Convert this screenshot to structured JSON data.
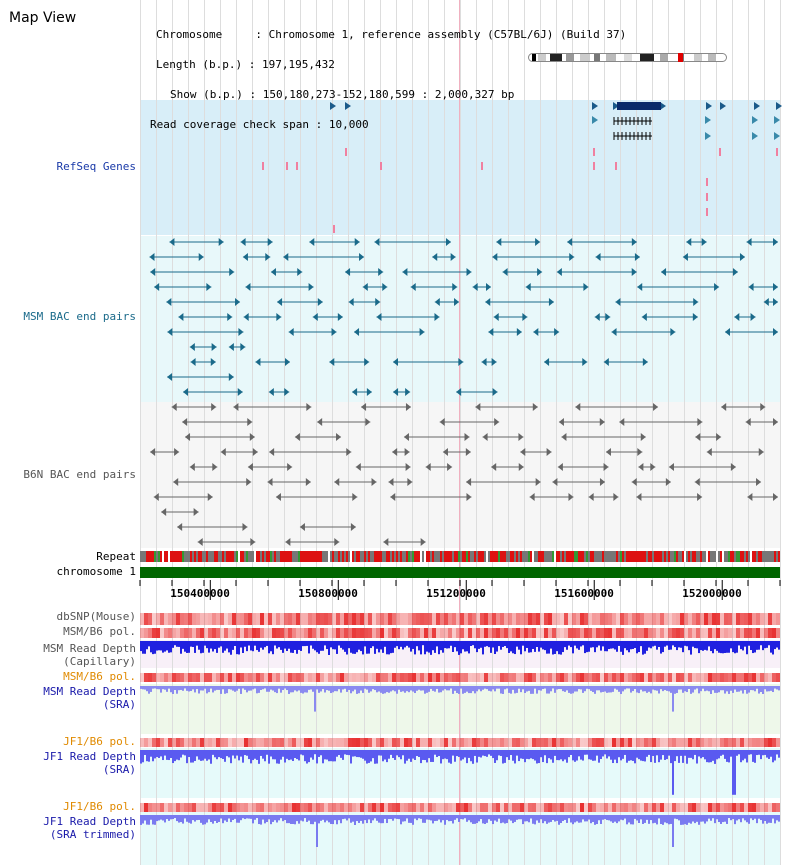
{
  "page_title": "Map View",
  "info": {
    "chromosome_label": "Chromosome",
    "chromosome_value": "Chromosome 1, reference assembly (C57BL/6J) (Build 37)",
    "length_label": "Length (b.p.)",
    "length_value": "197,195,432",
    "show_label": "Show (b.p.)",
    "show_value": "150,180,273-152,180,599 : 2,000,327 bp",
    "span_label": "Read coverage check span",
    "span_value": "10,000"
  },
  "tracks": {
    "refseq": "RefSeq Genes",
    "msm_bac": "MSM BAC end pairs",
    "b6n_bac": "B6N BAC end pairs",
    "repeat": "Repeat",
    "chromosome": "chromosome 1",
    "dbsnp": "dbSNP(Mouse)",
    "msm_b6_pol": "MSM/B6 pol.",
    "msm_depth_cap_1": "MSM Read Depth",
    "msm_depth_cap_2": "(Capillary)",
    "msm_b6_pol_2": "MSM/B6 pol.",
    "msm_depth_sra_1": "MSM Read Depth",
    "msm_depth_sra_2": "(SRA)",
    "jf1_b6_pol": "JF1/B6 pol.",
    "jf1_depth_sra_1": "JF1 Read Depth",
    "jf1_depth_sra_2": "(SRA)",
    "jf1_b6_pol_2": "JF1/B6 pol.",
    "jf1_depth_trim_1": "JF1 Read Depth",
    "jf1_depth_trim_2": "(SRA trimmed)"
  },
  "scale": {
    "ticks": [
      {
        "label": "150400000",
        "pos": 150400000
      },
      {
        "label": "150800000",
        "pos": 150800000
      },
      {
        "label": "151200000",
        "pos": 151200000
      },
      {
        "label": "151600000",
        "pos": 151600000
      },
      {
        "label": "152000000",
        "pos": 152000000
      }
    ],
    "start": 150180273,
    "end": 152180599
  },
  "colors": {
    "refseq_label": "#1a3aa8",
    "msm_label": "#1a6a8a",
    "b6n_label": "#555555",
    "orange_label": "#e08a00",
    "blue_label": "#1a1aaa",
    "refseq_bg": "#d8eef8",
    "msm_bg": "#e8f8fa",
    "chromosome_bar": "#006600"
  }
}
